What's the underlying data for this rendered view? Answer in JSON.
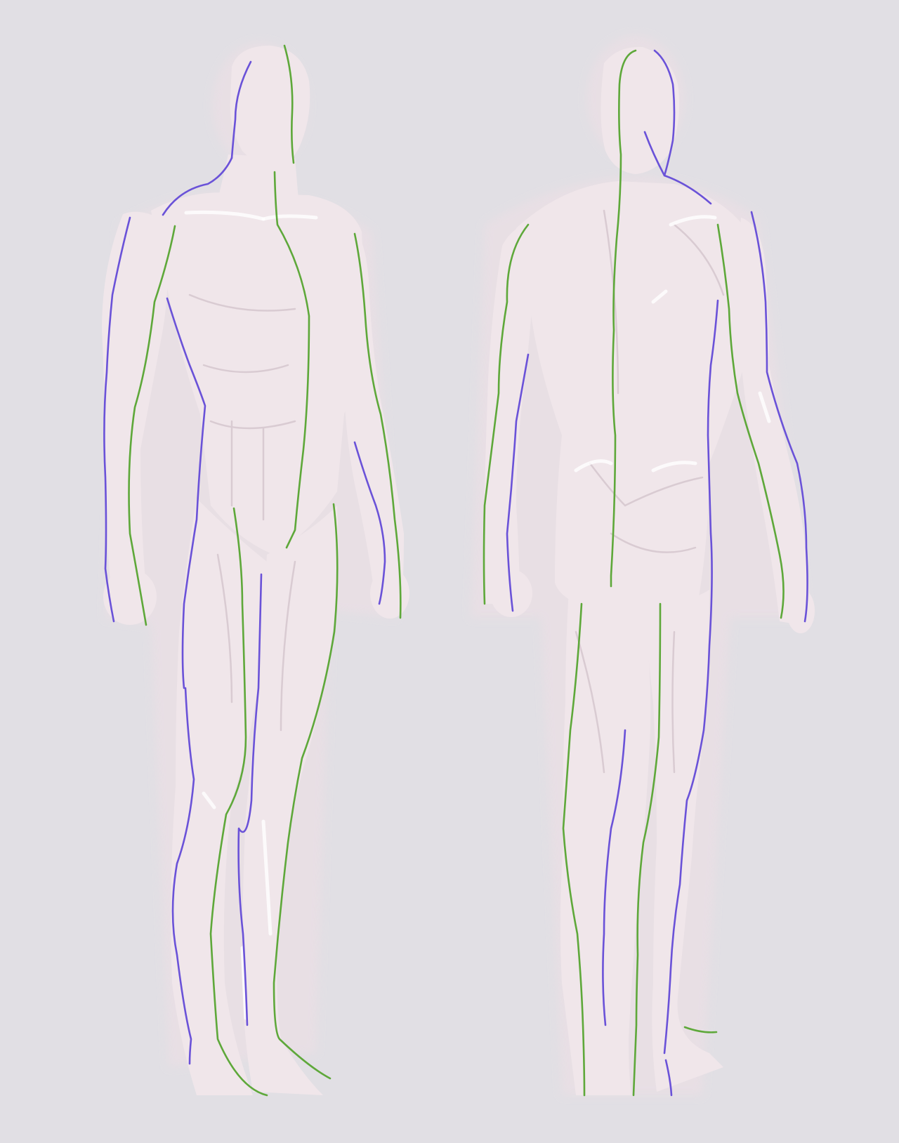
{
  "colors": {
    "background": "#e1dfe4",
    "body": "#f0e6ea",
    "contour_green": "#5ea83a",
    "contour_blue": "#6a52d8"
  },
  "figures": [
    {
      "name": "front-three-quarter-view",
      "contour_colors": [
        "green",
        "blue"
      ]
    },
    {
      "name": "back-three-quarter-view",
      "contour_colors": [
        "green",
        "blue"
      ]
    }
  ]
}
